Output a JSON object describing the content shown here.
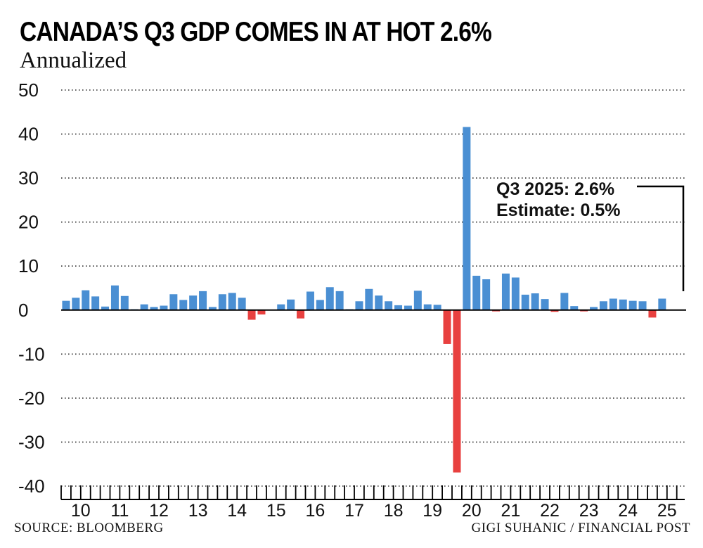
{
  "title": "CANADA’S Q3 GDP COMES IN AT HOT 2.6%",
  "subtitle": "Annualized",
  "source": "SOURCE: BLOOMBERG",
  "credit": "GIGI SUHANIC / FINANCIAL POST",
  "colors": {
    "positive": "#4a8fd3",
    "negative": "#e8403f",
    "axis": "#000000",
    "grid": "#333333"
  },
  "chart_data": {
    "type": "bar",
    "title": "CANADA’S Q3 GDP COMES IN AT HOT 2.6%",
    "subtitle": "Annualized",
    "xlabel": "",
    "ylabel": "",
    "ylim": [
      -40,
      50
    ],
    "yticks": [
      50,
      40,
      30,
      20,
      10,
      0,
      -10,
      -20,
      -30,
      -40
    ],
    "year_labels": [
      "10",
      "11",
      "12",
      "13",
      "14",
      "15",
      "16",
      "17",
      "18",
      "19",
      "20",
      "21",
      "22",
      "23",
      "24",
      "25"
    ],
    "quarters_per_year": 4,
    "values": [
      2.1,
      2.8,
      4.5,
      3.1,
      0.8,
      5.6,
      3.2,
      0.2,
      1.3,
      0.7,
      1.0,
      3.6,
      2.3,
      3.3,
      4.3,
      0.7,
      3.6,
      3.9,
      2.8,
      -2.2,
      -1.0,
      0.1,
      1.3,
      2.4,
      -1.9,
      4.2,
      2.3,
      5.2,
      4.3,
      0.2,
      2.0,
      4.8,
      3.3,
      2.0,
      1.1,
      1.0,
      4.4,
      1.3,
      1.2,
      -7.7,
      -36.9,
      41.6,
      7.8,
      7.0,
      -0.3,
      8.3,
      7.4,
      3.5,
      3.8,
      2.5,
      -0.4,
      3.9,
      0.9,
      -0.3,
      0.7,
      2.0,
      2.6,
      2.4,
      2.1,
      2.0,
      -1.7,
      2.6
    ],
    "annotation": {
      "lines": [
        "Q3 2025: 2.6%",
        "Estimate: 0.5%"
      ],
      "points_to": "last bar"
    }
  }
}
